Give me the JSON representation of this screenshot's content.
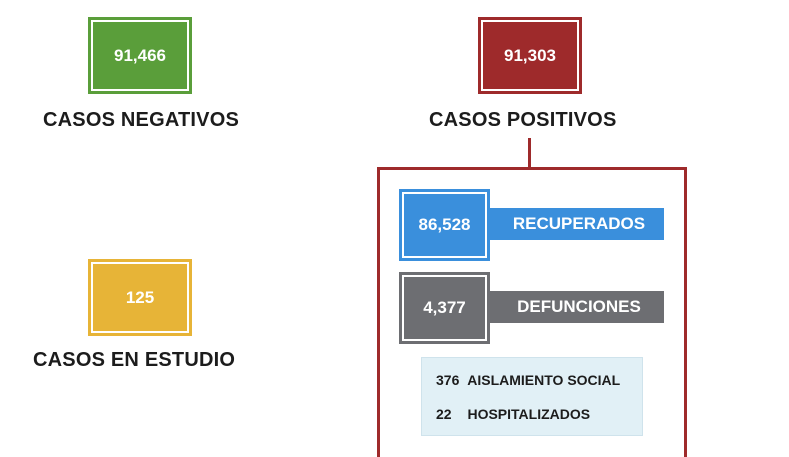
{
  "colors": {
    "negative": "#5a9e3a",
    "positive": "#9e2a2b",
    "study": "#e7b437",
    "recovered": "#3a8fdc",
    "deaths": "#6d6e72",
    "detail_bg": "#e1f0f6"
  },
  "negative": {
    "value": "91,466",
    "label": "CASOS NEGATIVOS"
  },
  "positive": {
    "value": "91,303",
    "label": "CASOS POSITIVOS"
  },
  "study": {
    "value": "125",
    "label": "CASOS EN ESTUDIO"
  },
  "recovered": {
    "value": "86,528",
    "label": "RECUPERADOS"
  },
  "deaths": {
    "value": "4,377",
    "label": "DEFUNCIONES"
  },
  "details": [
    {
      "value": "376",
      "label": "AISLAMIENTO SOCIAL"
    },
    {
      "value": "22",
      "label": "HOSPITALIZADOS"
    }
  ]
}
